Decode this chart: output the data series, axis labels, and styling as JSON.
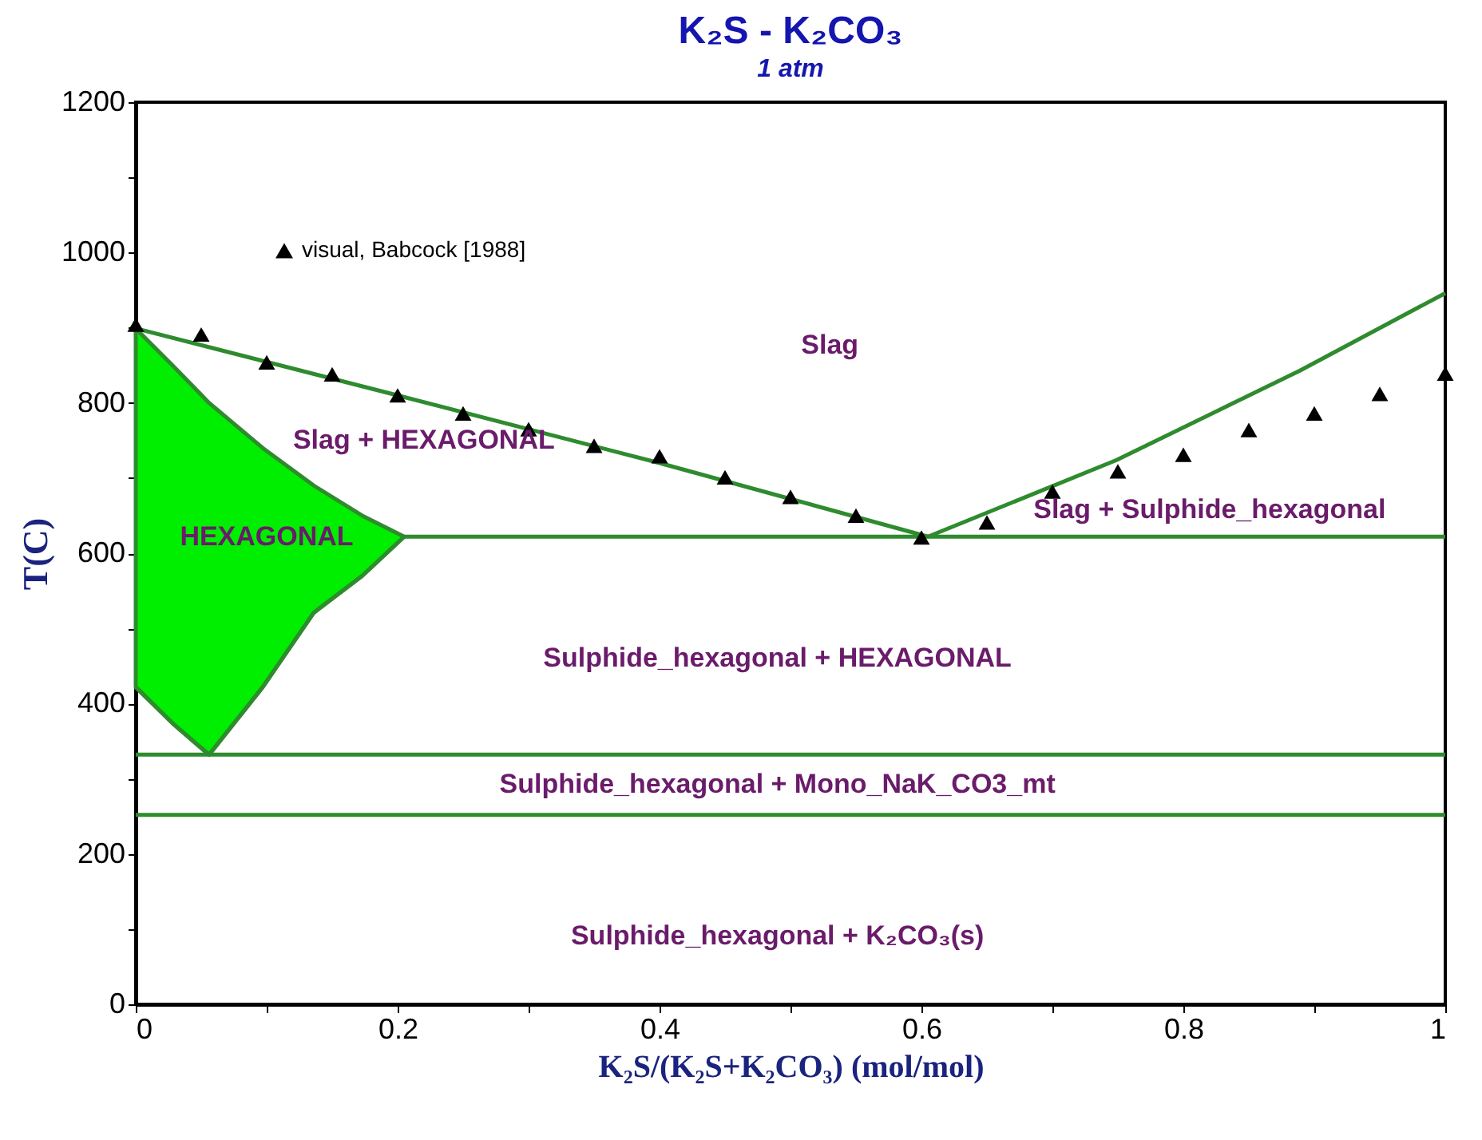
{
  "chart_data": {
    "type": "line",
    "title": "K₂S - K₂CO₃",
    "subtitle": "1 atm",
    "xlabel": "K₂S/(K₂S+K₂CO₃) (mol/mol)",
    "ylabel": "T(C)",
    "xlim": [
      0,
      1
    ],
    "ylim": [
      0,
      1200
    ],
    "xticks": [
      0,
      {
        "value": 0.1,
        "label": null
      },
      0.2,
      {
        "value": 0.3,
        "label": null
      },
      0.4,
      {
        "value": 0.5,
        "label": null
      },
      0.6,
      {
        "value": 0.7,
        "label": null
      },
      0.8,
      {
        "value": 0.9,
        "label": null
      },
      1
    ],
    "yticks": [
      0,
      {
        "value": 100,
        "label": null
      },
      200,
      {
        "value": 300,
        "label": null
      },
      400,
      {
        "value": 500,
        "label": null
      },
      600,
      {
        "value": 700,
        "label": null
      },
      800,
      {
        "value": 900,
        "label": null
      },
      1000,
      {
        "value": 1100,
        "label": null
      },
      1200
    ],
    "grid": false,
    "legend": "top left",
    "series": [
      {
        "type": "area",
        "color": "#00ee00",
        "x": [
          0,
          0.028,
          0.056,
          0.097,
          0.136,
          0.173,
          0.205
        ],
        "values": [
          899,
          850,
          800,
          740,
          690,
          650,
          622
        ]
      },
      {
        "type": "line",
        "color": "#2e8b2e",
        "x": [
          0,
          0.028,
          0.056,
          0.097,
          0.136,
          0.173,
          0.205
        ],
        "values": [
          422,
          374,
          332,
          422,
          521,
          570,
          622
        ]
      },
      {
        "type": "line",
        "color": "#2e8b2e",
        "x": [
          0,
          0.2,
          0.4,
          0.605
        ],
        "values": [
          899,
          810,
          720,
          622
        ]
      },
      {
        "type": "line",
        "color": "#2e8b2e",
        "x": [
          0.605,
          0.749,
          0.889,
          1
        ],
        "values": [
          622,
          724,
          843,
          946
        ]
      },
      {
        "type": "line",
        "color": "#2e8b2e",
        "x": [
          0.205,
          1
        ],
        "values": [
          622,
          622
        ]
      },
      {
        "type": "line",
        "color": "#2e8b2e",
        "x": [
          0,
          1
        ],
        "values": [
          332,
          332
        ]
      },
      {
        "type": "line",
        "color": "#2e8b2e",
        "x": [
          0,
          1
        ],
        "values": [
          252,
          252
        ]
      },
      {
        "type": "scatter",
        "name": "visual, Babcock [1988]",
        "color": "#000000",
        "marker": "triangle",
        "x": [
          0,
          0.05,
          0.1,
          0.15,
          0.2,
          0.25,
          0.3,
          0.35,
          0.4,
          0.45,
          0.5,
          0.55,
          0.6,
          0.65,
          0.7,
          0.75,
          0.8,
          0.85,
          0.9,
          0.95,
          1
        ],
        "values": [
          904,
          891,
          854,
          838,
          810,
          786,
          765,
          743,
          729,
          701,
          675,
          650,
          621,
          641,
          682,
          709,
          731,
          764,
          786,
          812,
          839
        ]
      }
    ],
    "annotations": [
      "Slag",
      "Slag + HEXAGONAL",
      "HEXAGONAL",
      "Slag + Sulphide_hexagonal",
      "Sulphide_hexagonal + HEXAGONAL",
      "Sulphide_hexagonal + Mono_NaK_CO3_mt",
      "Sulphide_hexagonal + K₂CO₃(s)"
    ]
  }
}
